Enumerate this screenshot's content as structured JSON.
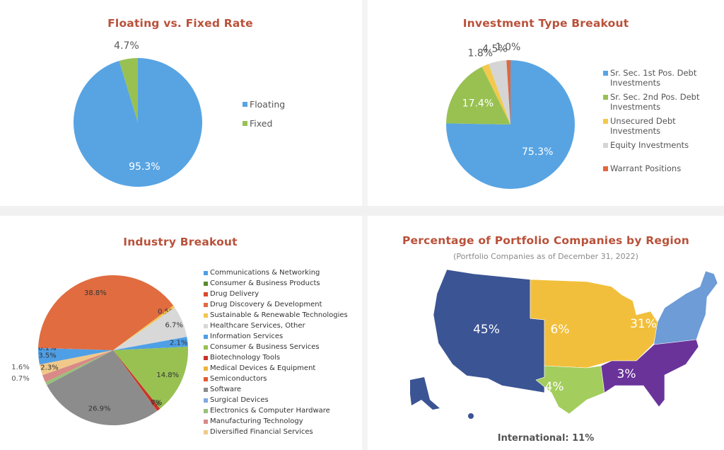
{
  "chart_data": [
    {
      "type": "pie",
      "title": "Floating vs. Fixed Rate",
      "categories": [
        "Floating",
        "Fixed"
      ],
      "values": [
        95.3,
        4.7
      ],
      "labels": [
        "95.3%",
        "4.7%"
      ],
      "colors": [
        "#58a4e3",
        "#98c152"
      ],
      "legend": "right"
    },
    {
      "type": "pie",
      "title": "Investment Type Breakout",
      "categories": [
        "Sr. Sec. 1st Pos. Debt Investments",
        "Sr. Sec. 2nd Pos. Debt Investments",
        "Unsecured Debt Investments",
        "Equity Investments",
        "Warrant Positions"
      ],
      "values": [
        75.3,
        17.4,
        1.8,
        4.5,
        1.0
      ],
      "labels": [
        "75.3%",
        "17.4%",
        "1.8%",
        "4.5%",
        "1.0%"
      ],
      "colors": [
        "#58a4e3",
        "#98c152",
        "#f2c94c",
        "#d5d5d5",
        "#e2673d"
      ],
      "legend": "right"
    },
    {
      "type": "pie",
      "title": "Industry Breakout",
      "categories": [
        "Communications & Networking",
        "Consumer & Business Products",
        "Drug Delivery",
        "Drug Discovery & Development",
        "Sustainable & Renewable Technologies",
        "Healthcare Services, Other",
        "Information Services",
        "Consumer & Business Services",
        "Biotechnology Tools",
        "Medical Devices & Equipment",
        "Semiconductors",
        "Software",
        "Surgical Devices",
        "Electronics & Computer Hardware",
        "Manufacturing Technology",
        "Diversified Financial Services"
      ],
      "values": [
        3.5,
        0.0,
        0.1,
        38.8,
        0.5,
        6.7,
        2.1,
        14.8,
        0.7,
        0.0,
        0.1,
        26.9,
        0.0,
        0.7,
        1.6,
        2.3
      ],
      "labels": [
        "3.5%",
        "",
        "0.1%",
        "38.8%",
        "0.5%",
        "6.7%",
        "2.1%",
        "14.8%",
        "0.7%",
        "",
        "0.1%",
        "26.9%",
        "",
        "0.7%",
        "1.6%",
        "2.3%"
      ],
      "colors": [
        "#4f9fe6",
        "#5a8a2e",
        "#d84a2c",
        "#e06c40",
        "#f3c552",
        "#d8d8d8",
        "#4f9fe6",
        "#98c152",
        "#c8322a",
        "#eeb33a",
        "#e05a30",
        "#8c8c8c",
        "#7fa8e0",
        "#98c17a",
        "#d88a86",
        "#f0c98a"
      ],
      "legend": "right"
    },
    {
      "type": "map",
      "title": "Percentage of Portfolio Companies by Region",
      "subtitle": "(Portfolio Companies as of December 31, 2022)",
      "regions": [
        {
          "name": "West",
          "value": "45%",
          "color": "#3b5494"
        },
        {
          "name": "Midwest",
          "value": "6%",
          "color": "#f2bf3c"
        },
        {
          "name": "Northeast",
          "value": "31%",
          "color": "#6d9cd6"
        },
        {
          "name": "Southwest",
          "value": "4%",
          "color": "#a3cd5d"
        },
        {
          "name": "Southeast",
          "value": "3%",
          "color": "#6a339a"
        }
      ],
      "footer": "International: 11%"
    }
  ]
}
